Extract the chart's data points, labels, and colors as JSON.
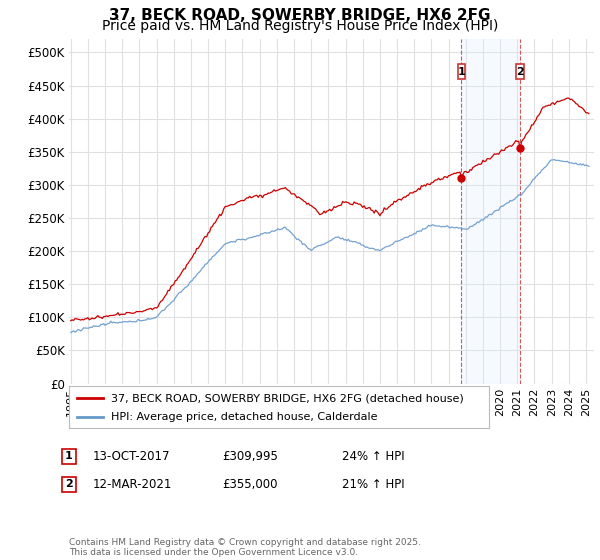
{
  "title": "37, BECK ROAD, SOWERBY BRIDGE, HX6 2FG",
  "subtitle": "Price paid vs. HM Land Registry's House Price Index (HPI)",
  "ylim": [
    0,
    520000
  ],
  "yticks": [
    0,
    50000,
    100000,
    150000,
    200000,
    250000,
    300000,
    350000,
    400000,
    450000,
    500000
  ],
  "ytick_labels": [
    "£0",
    "£50K",
    "£100K",
    "£150K",
    "£200K",
    "£250K",
    "£300K",
    "£350K",
    "£400K",
    "£450K",
    "£500K"
  ],
  "bg_color": "#ffffff",
  "plot_bg_color": "#ffffff",
  "grid_color": "#e0e0e0",
  "line1_color": "#cc0000",
  "line2_color": "#6699cc",
  "span_color": "#ddeeff",
  "marker1_x": 2017.75,
  "marker2_x": 2021.17,
  "marker1_price": 309995,
  "marker2_price": 355000,
  "marker1_hpi_str": "24% ↑ HPI",
  "marker2_hpi_str": "21% ↑ HPI",
  "marker1_date_str": "13-OCT-2017",
  "marker2_date_str": "12-MAR-2021",
  "legend1": "37, BECK ROAD, SOWERBY BRIDGE, HX6 2FG (detached house)",
  "legend2": "HPI: Average price, detached house, Calderdale",
  "footer": "Contains HM Land Registry data © Crown copyright and database right 2025.\nThis data is licensed under the Open Government Licence v3.0.",
  "title_fontsize": 11,
  "subtitle_fontsize": 10,
  "tick_fontsize": 8.5,
  "legend_fontsize": 8,
  "annotation_fontsize": 8.5
}
